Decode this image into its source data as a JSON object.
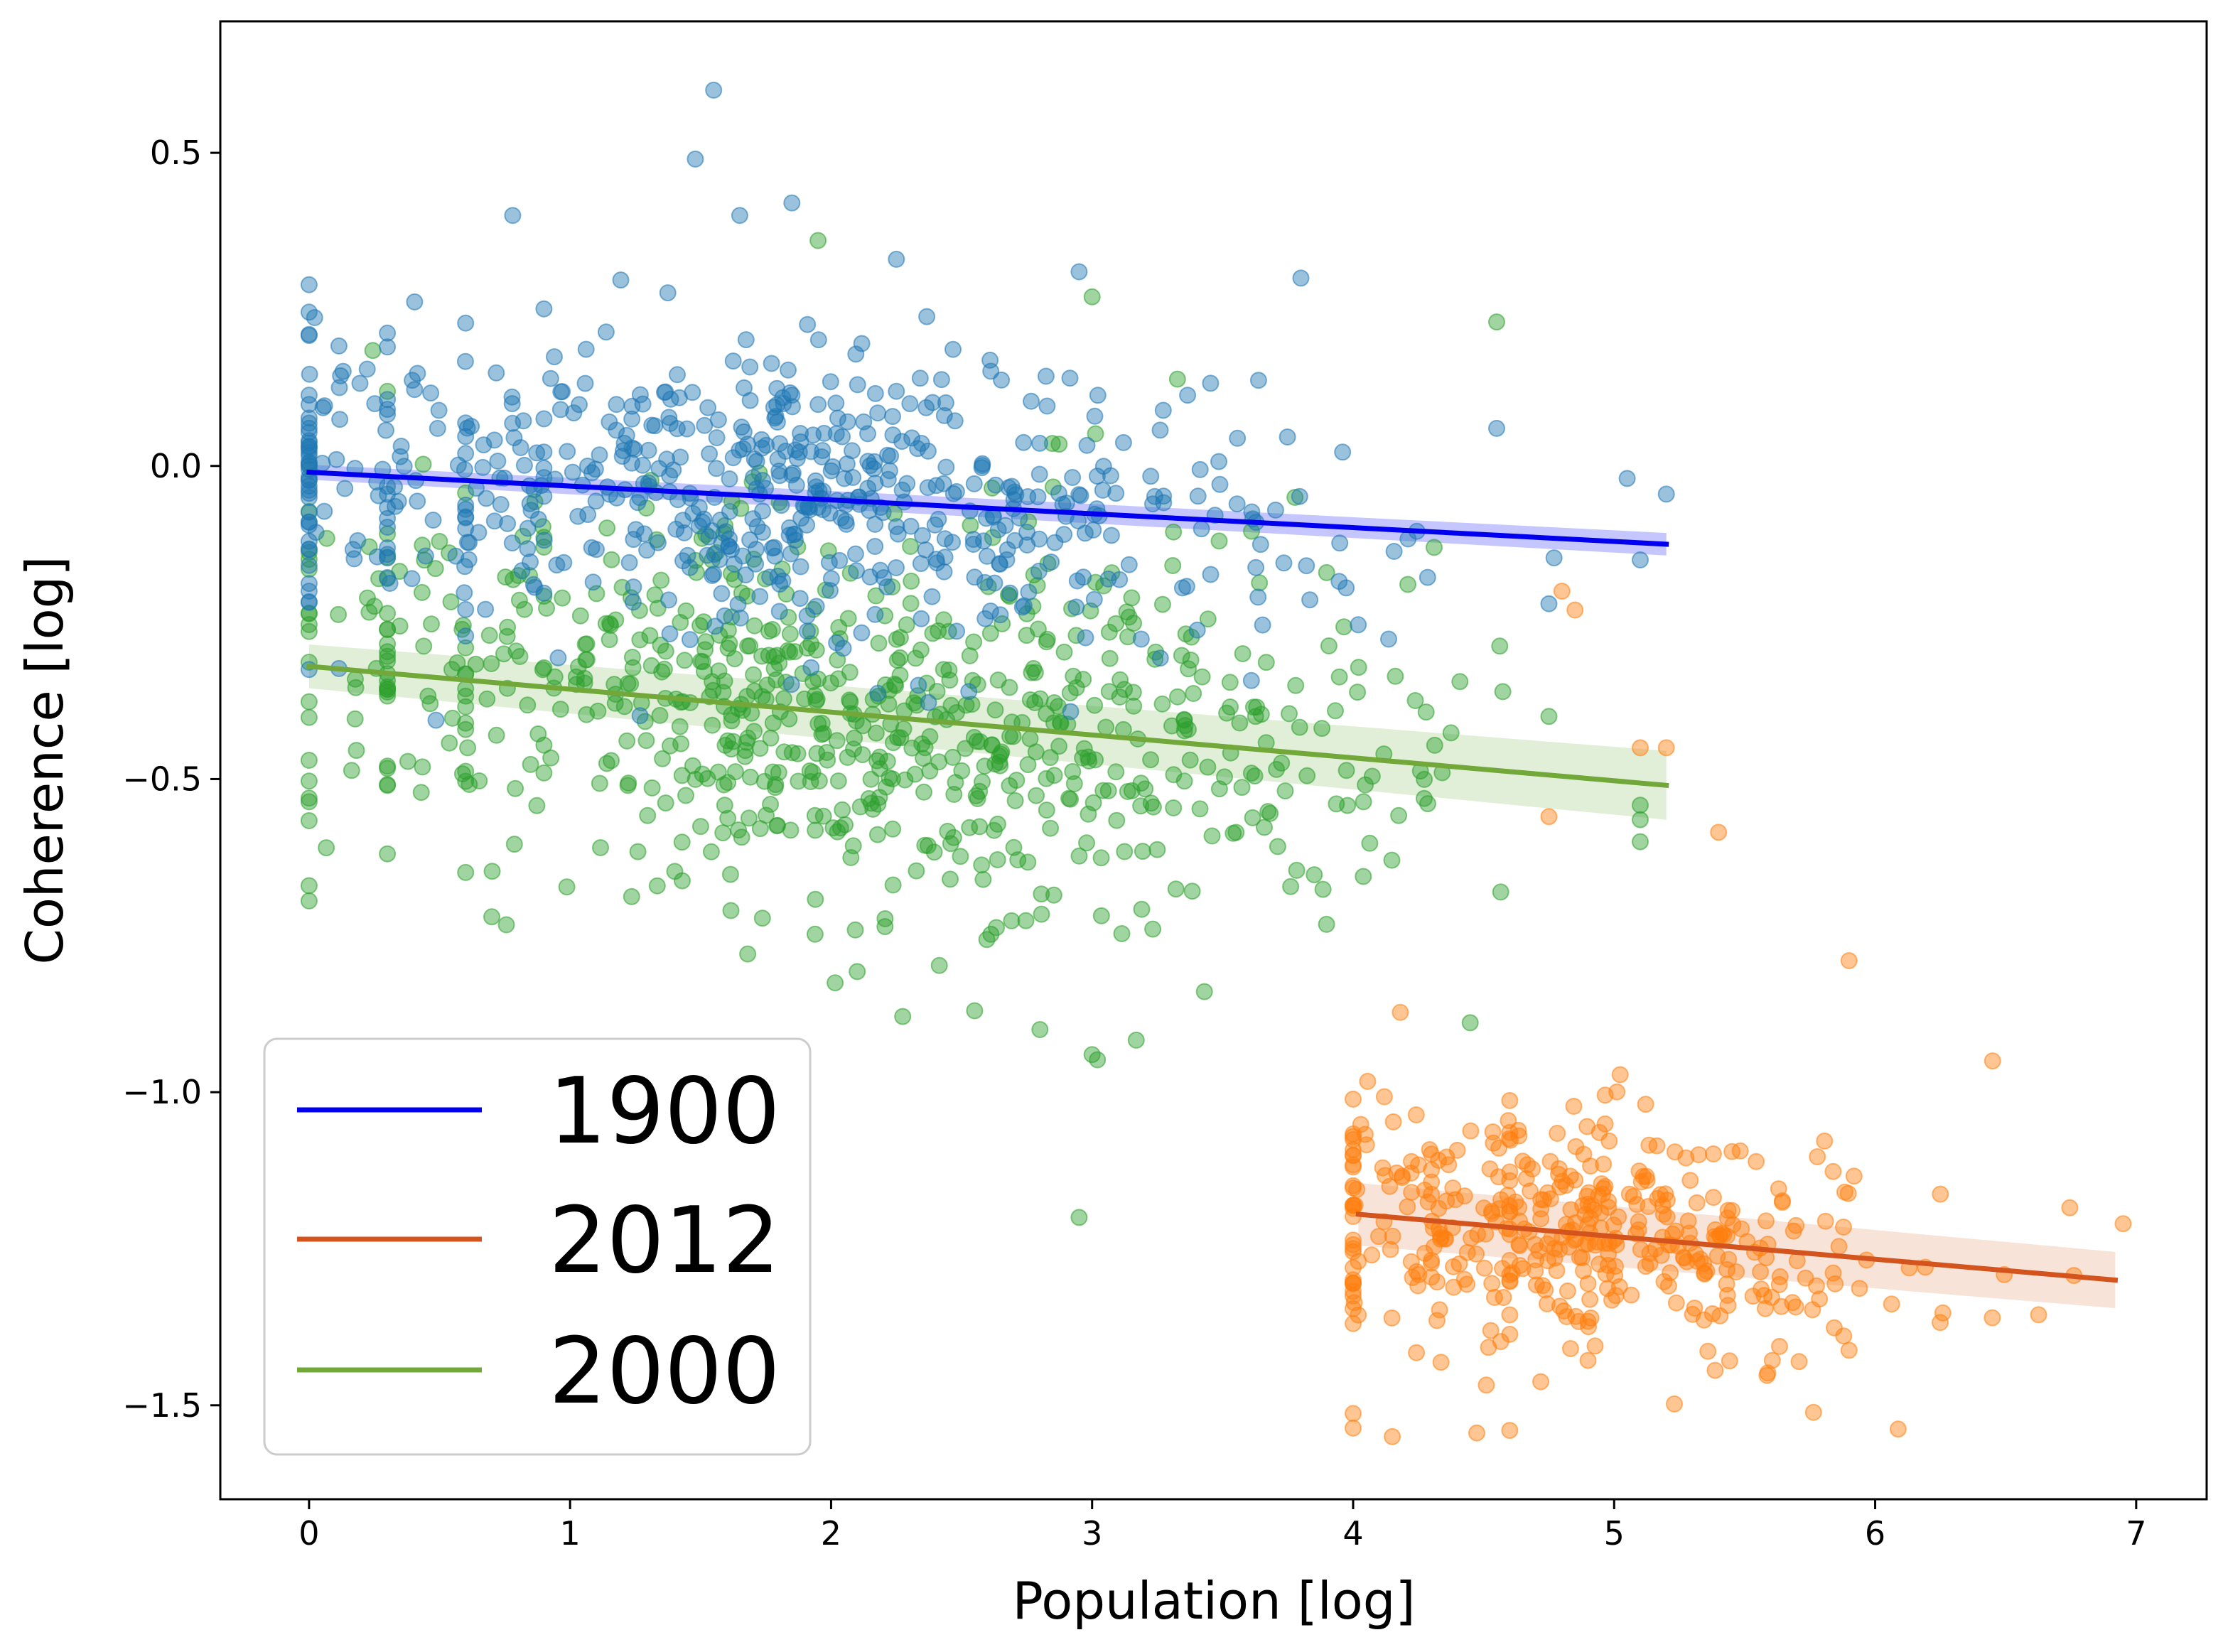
{
  "chart_data": {
    "type": "scatter",
    "title": "",
    "xlabel": "Population [log]",
    "ylabel": "Coherence [log]",
    "xlim": [
      -0.34,
      7.27
    ],
    "ylim": [
      -1.65,
      0.71
    ],
    "xticks": [
      0,
      1,
      2,
      3,
      4,
      5,
      6,
      7
    ],
    "xtick_labels": [
      "0",
      "1",
      "2",
      "3",
      "4",
      "5",
      "6",
      "7"
    ],
    "yticks": [
      0.5,
      0.0,
      -0.5,
      -1.0,
      -1.5
    ],
    "ytick_labels": [
      "0.5",
      "0.0",
      "−0.5",
      "−1.0",
      "−1.5"
    ],
    "grid": false,
    "legend_position": "lower-left",
    "legend": [
      {
        "label": "1900",
        "color": "#0000ee"
      },
      {
        "label": "2012",
        "color": "#d4541e"
      },
      {
        "label": "2000",
        "color": "#72a83a"
      }
    ],
    "series": [
      {
        "name": "1900",
        "point_color": "#1f77b4",
        "line_color": "#0000ee",
        "band_color": "#5b5bff",
        "n_points": 640,
        "x_range": [
          0.0,
          5.2
        ],
        "x_mode": 1.8,
        "y_center": -0.05,
        "y_spread": 0.12,
        "fit": {
          "x": [
            0.0,
            5.2
          ],
          "y": [
            -0.01,
            -0.125
          ]
        },
        "fit_band_halfwidth": [
          0.012,
          0.018
        ],
        "sample_points": [
          [
            1.55,
            0.6
          ],
          [
            1.48,
            0.49
          ],
          [
            1.85,
            0.42
          ],
          [
            1.65,
            0.4
          ],
          [
            0.78,
            0.4
          ],
          [
            2.95,
            0.31
          ],
          [
            2.25,
            0.33
          ],
          [
            3.8,
            0.3
          ],
          [
            0.0,
            0.21
          ],
          [
            0.3,
            0.19
          ],
          [
            5.05,
            -0.02
          ],
          [
            5.2,
            -0.045
          ],
          [
            5.1,
            -0.15
          ],
          [
            4.55,
            0.06
          ],
          [
            4.75,
            -0.22
          ]
        ]
      },
      {
        "name": "2000",
        "point_color": "#2ca02c",
        "line_color": "#72a83a",
        "band_color": "#a9d18e",
        "n_points": 760,
        "x_range": [
          0.0,
          5.1
        ],
        "x_mode": 2.2,
        "y_center": -0.42,
        "y_spread": 0.16,
        "fit": {
          "x": [
            0.0,
            5.2
          ],
          "y": [
            -0.32,
            -0.51
          ]
        },
        "fit_band_halfwidth": [
          0.035,
          0.055
        ],
        "sample_points": [
          [
            1.95,
            0.36
          ],
          [
            3.0,
            0.27
          ],
          [
            4.55,
            0.23
          ],
          [
            0.0,
            -0.235
          ],
          [
            0.0,
            -0.47
          ],
          [
            0.7,
            -0.72
          ],
          [
            2.95,
            -1.2
          ],
          [
            3.0,
            -0.94
          ],
          [
            2.8,
            -0.9
          ],
          [
            2.55,
            -0.87
          ],
          [
            5.1,
            -0.6
          ],
          [
            4.75,
            -0.4
          ]
        ]
      },
      {
        "name": "2012",
        "point_color": "#ff7f0e",
        "line_color": "#d4541e",
        "band_color": "#eab08f",
        "n_points": 430,
        "x_range": [
          4.0,
          6.95
        ],
        "x_mode": 4.85,
        "y_center": -1.3,
        "y_spread": 0.1,
        "fit": {
          "x": [
            4.02,
            6.92
          ],
          "y": [
            -1.195,
            -1.3
          ]
        },
        "fit_band_halfwidth": [
          0.05,
          0.045
        ],
        "sample_points": [
          [
            4.8,
            -0.2
          ],
          [
            4.85,
            -0.23
          ],
          [
            5.1,
            -0.45
          ],
          [
            5.2,
            -0.45
          ],
          [
            4.75,
            -0.56
          ],
          [
            5.4,
            -0.585
          ],
          [
            5.9,
            -0.79
          ],
          [
            6.45,
            -0.95
          ],
          [
            6.95,
            -1.21
          ],
          [
            4.15,
            -1.55
          ],
          [
            4.6,
            -1.54
          ],
          [
            4.02,
            -1.27
          ]
        ]
      }
    ]
  }
}
